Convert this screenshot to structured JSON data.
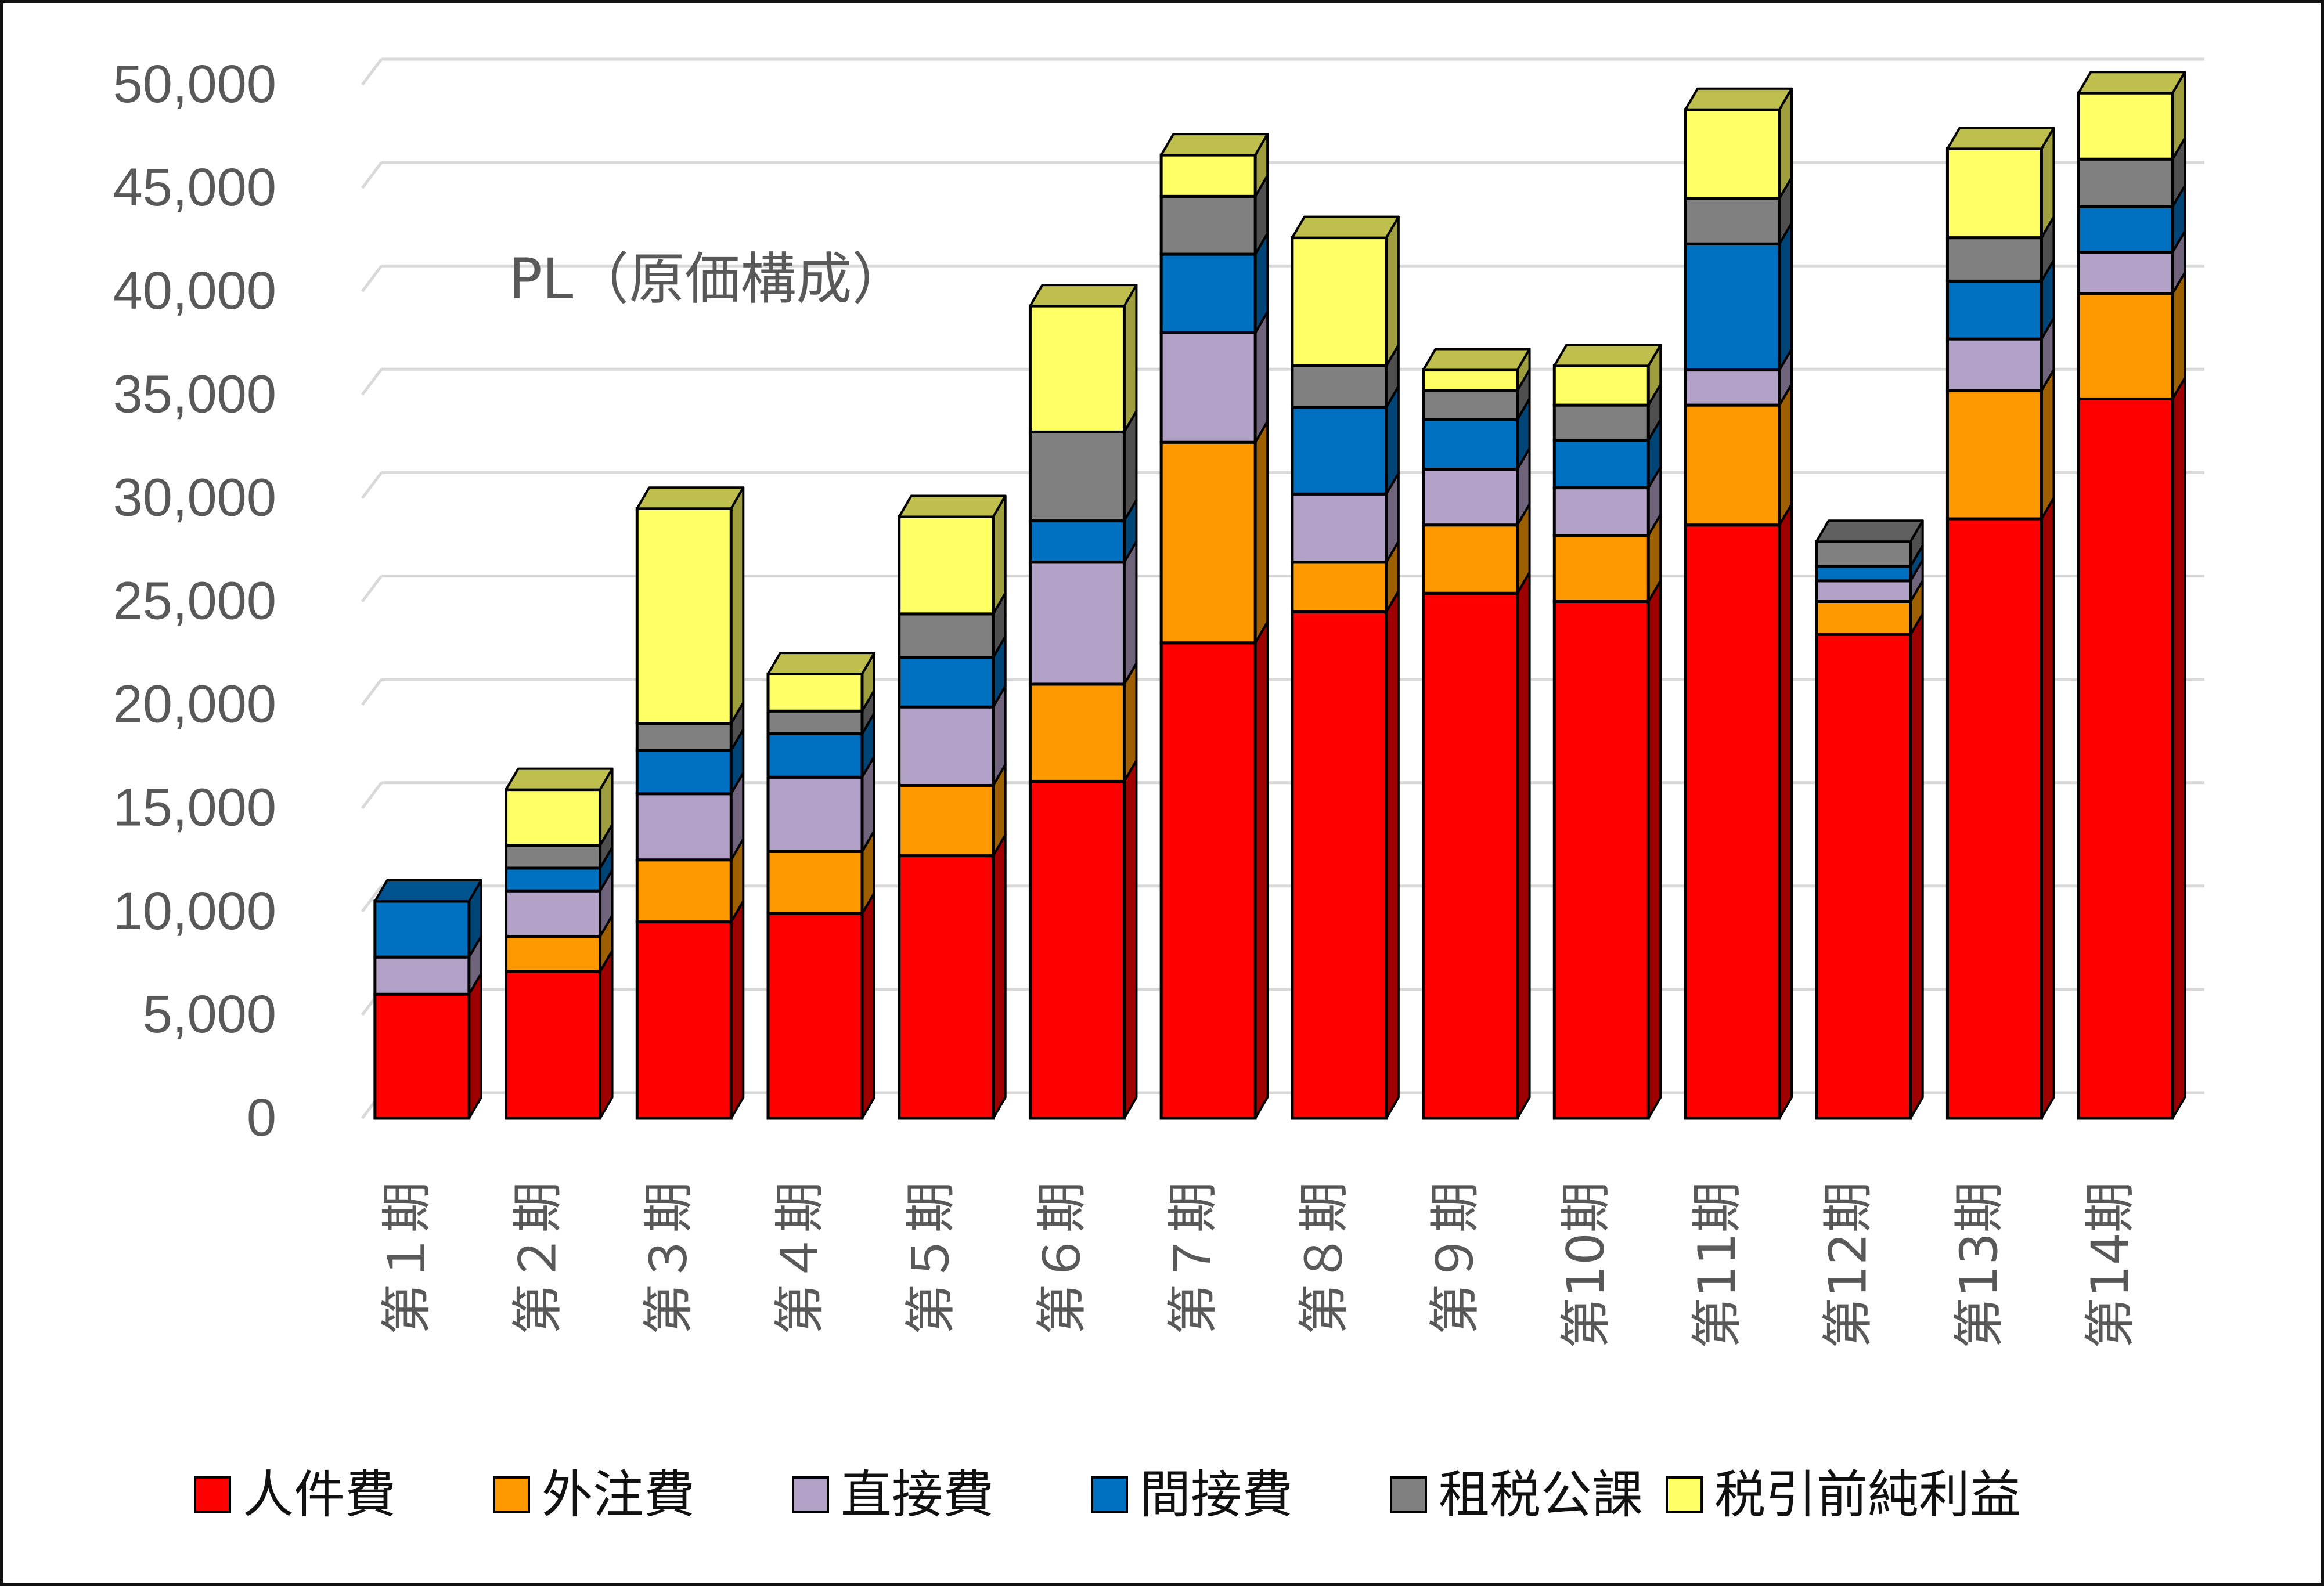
{
  "chart_data": {
    "type": "bar",
    "stacked": true,
    "three_d": true,
    "title": "PL（原価構成）",
    "xlabel": "",
    "ylabel": "",
    "ylim": [
      0,
      50000
    ],
    "yticks": [
      "0",
      "5,000",
      "10,000",
      "15,000",
      "20,000",
      "25,000",
      "30,000",
      "35,000",
      "40,000",
      "45,000",
      "50,000"
    ],
    "ytick_values": [
      0,
      5000,
      10000,
      15000,
      20000,
      25000,
      30000,
      35000,
      40000,
      45000,
      50000
    ],
    "grid": true,
    "legend_position": "bottom",
    "categories": [
      "第１期",
      "第２期",
      "第３期",
      "第４期",
      "第５期",
      "第６期",
      "第７期",
      "第８期",
      "第９期",
      "第10期",
      "第11期",
      "第12期",
      "第13期",
      "第14期"
    ],
    "series": [
      {
        "name": "人件費",
        "color": "#FF0000",
        "values": [
          6000,
          7100,
          9500,
          9900,
          12700,
          16300,
          23000,
          24500,
          25400,
          25000,
          28700,
          23400,
          29000,
          34800
        ]
      },
      {
        "name": "外注費",
        "color": "#FF9900",
        "values": [
          0,
          1700,
          3000,
          3000,
          3400,
          4700,
          9700,
          2400,
          3300,
          3200,
          5800,
          1600,
          6200,
          5100
        ]
      },
      {
        "name": "直接費",
        "color": "#B3A2C7",
        "values": [
          1800,
          2200,
          3200,
          3600,
          3800,
          5900,
          5300,
          3300,
          2700,
          2300,
          1700,
          1000,
          2500,
          2000
        ]
      },
      {
        "name": "間接費",
        "color": "#0070C0",
        "values": [
          2700,
          1100,
          2100,
          2100,
          2400,
          2000,
          3800,
          4200,
          2400,
          2300,
          6100,
          700,
          2800,
          2200
        ]
      },
      {
        "name": "租税公課",
        "color": "#808080",
        "values": [
          0,
          1100,
          1300,
          1100,
          2100,
          4300,
          2800,
          2000,
          1400,
          1700,
          2200,
          1200,
          2100,
          2300
        ]
      },
      {
        "name": "税引前純利益",
        "color": "#FFFF66",
        "values": [
          0,
          2700,
          10400,
          1800,
          4700,
          6100,
          2000,
          6200,
          1000,
          1900,
          4300,
          0,
          4300,
          3200
        ]
      }
    ]
  }
}
